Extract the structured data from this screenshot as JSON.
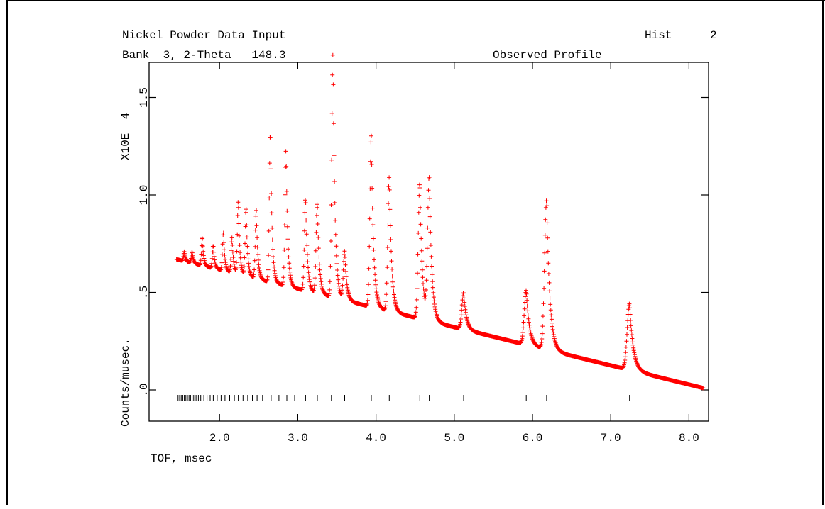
{
  "header": {
    "title": "Nickel Powder Data Input",
    "hist_label": "Hist",
    "hist_value": "2",
    "bank_line": "Bank  3, 2-Theta   148.3",
    "profile_label": "Observed Profile"
  },
  "colors": {
    "points": "#ff0000",
    "axes": "#000000",
    "background": "#ffffff"
  },
  "chart_data": {
    "type": "scatter",
    "marker": "plus",
    "xlabel": "TOF, msec",
    "ylabel": "Counts/musec.",
    "y_multiplier_label": "X10E  4",
    "xlim": [
      1.1,
      8.25
    ],
    "ylim": [
      -0.16,
      1.68
    ],
    "x_ticks": [
      2.0,
      3.0,
      4.0,
      5.0,
      6.0,
      7.0,
      8.0
    ],
    "x_tick_labels": [
      "2.0",
      "3.0",
      "4.0",
      "5.0",
      "6.0",
      "7.0",
      "8.0"
    ],
    "y_ticks": [
      0.0,
      0.5,
      1.0,
      1.5
    ],
    "y_tick_labels": [
      ".0",
      ".5",
      "1.0",
      "1.5"
    ],
    "background": {
      "x_start": 1.45,
      "x_end": 8.18,
      "y_start": 0.67,
      "y_end": 0.01
    },
    "peaks": [
      {
        "x": 1.55,
        "height": 0.05
      },
      {
        "x": 1.65,
        "height": 0.06
      },
      {
        "x": 1.78,
        "height": 0.15
      },
      {
        "x": 1.92,
        "height": 0.12
      },
      {
        "x": 2.05,
        "height": 0.2
      },
      {
        "x": 2.16,
        "height": 0.18
      },
      {
        "x": 2.24,
        "height": 0.38
      },
      {
        "x": 2.34,
        "height": 0.35
      },
      {
        "x": 2.47,
        "height": 0.35
      },
      {
        "x": 2.65,
        "height": 0.78
      },
      {
        "x": 2.85,
        "height": 0.7
      },
      {
        "x": 3.1,
        "height": 0.48
      },
      {
        "x": 3.25,
        "height": 0.47
      },
      {
        "x": 3.45,
        "height": 1.25
      },
      {
        "x": 3.6,
        "height": 0.25
      },
      {
        "x": 3.94,
        "height": 0.88
      },
      {
        "x": 4.17,
        "height": 0.69
      },
      {
        "x": 4.56,
        "height": 0.7
      },
      {
        "x": 4.68,
        "height": 0.73
      },
      {
        "x": 5.12,
        "height": 0.19
      },
      {
        "x": 5.92,
        "height": 0.28
      },
      {
        "x": 6.18,
        "height": 0.77
      },
      {
        "x": 7.24,
        "height": 0.34
      }
    ],
    "reflection_marks_y": -0.04,
    "reflection_marks": [
      1.47,
      1.49,
      1.51,
      1.53,
      1.55,
      1.57,
      1.59,
      1.61,
      1.63,
      1.65,
      1.67,
      1.7,
      1.73,
      1.76,
      1.8,
      1.84,
      1.88,
      1.92,
      1.97,
      2.02,
      2.07,
      2.13,
      2.19,
      2.24,
      2.3,
      2.36,
      2.42,
      2.48,
      2.55,
      2.66,
      2.76,
      2.86,
      2.96,
      3.1,
      3.25,
      3.43,
      3.6,
      3.94,
      4.17,
      4.56,
      4.68,
      5.12,
      5.92,
      6.18,
      7.24
    ]
  }
}
